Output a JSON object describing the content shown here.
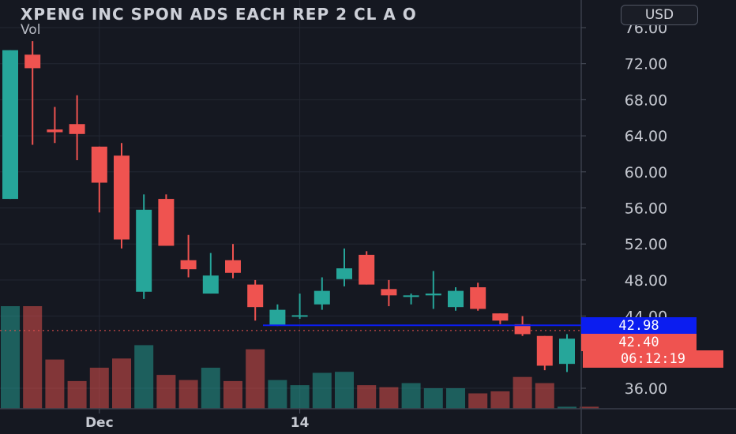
{
  "header": {
    "title": "XPENG INC SPON ADS EACH REP 2 CL A O",
    "indicator": "Vol",
    "currency_label": "USD"
  },
  "price_tags": {
    "blue_line": "42.98",
    "last_price": "42.40",
    "countdown": "06:12:19"
  },
  "colors": {
    "up": "#26a69a",
    "down": "#ef5350",
    "blue_line": "#0b1df0",
    "background": "#151821"
  },
  "chart_data": {
    "type": "candlestick",
    "y_axis": {
      "ticks": [
        "76.00",
        "72.00",
        "68.00",
        "64.00",
        "60.00",
        "56.00",
        "52.00",
        "48.00",
        "44.00",
        "36.00"
      ],
      "ylim": [
        32.5,
        77.5
      ]
    },
    "x_axis": {
      "tick_labels": [
        {
          "label": "Dec",
          "index": 4
        },
        {
          "label": "14",
          "index": 13
        }
      ]
    },
    "candles": [
      {
        "open": 57.0,
        "high": 73.5,
        "low": 57.0,
        "close": 73.5,
        "volume": 1.0
      },
      {
        "open": 73.0,
        "high": 74.5,
        "low": 63.0,
        "close": 71.5,
        "volume": 1.0
      },
      {
        "open": 64.7,
        "high": 67.2,
        "low": 63.2,
        "close": 64.4,
        "volume": 0.48
      },
      {
        "open": 65.3,
        "high": 68.5,
        "low": 61.3,
        "close": 64.2,
        "volume": 0.27
      },
      {
        "open": 62.8,
        "high": 62.8,
        "low": 55.5,
        "close": 58.8,
        "volume": 0.4
      },
      {
        "open": 61.8,
        "high": 63.2,
        "low": 51.5,
        "close": 52.5,
        "volume": 0.49
      },
      {
        "open": 46.7,
        "high": 57.5,
        "low": 45.9,
        "close": 55.8,
        "volume": 0.62
      },
      {
        "open": 57.0,
        "high": 57.5,
        "low": 51.8,
        "close": 51.8,
        "volume": 0.33
      },
      {
        "open": 50.2,
        "high": 53.0,
        "low": 48.3,
        "close": 49.2,
        "volume": 0.28
      },
      {
        "open": 46.5,
        "high": 51.0,
        "low": 46.5,
        "close": 48.5,
        "volume": 0.4
      },
      {
        "open": 50.2,
        "high": 52.0,
        "low": 48.2,
        "close": 48.8,
        "volume": 0.27
      },
      {
        "open": 47.5,
        "high": 48.0,
        "low": 43.5,
        "close": 45.0,
        "volume": 0.58
      },
      {
        "open": 43.0,
        "high": 45.3,
        "low": 42.9,
        "close": 44.7,
        "volume": 0.28
      },
      {
        "open": 44.0,
        "high": 46.5,
        "low": 43.7,
        "close": 44.1,
        "volume": 0.23
      },
      {
        "open": 45.3,
        "high": 48.3,
        "low": 44.7,
        "close": 46.8,
        "volume": 0.35
      },
      {
        "open": 48.1,
        "high": 51.5,
        "low": 47.3,
        "close": 49.3,
        "volume": 0.36
      },
      {
        "open": 50.8,
        "high": 51.2,
        "low": 47.5,
        "close": 47.5,
        "volume": 0.23
      },
      {
        "open": 47.0,
        "high": 48.0,
        "low": 45.1,
        "close": 46.3,
        "volume": 0.21
      },
      {
        "open": 46.3,
        "high": 46.5,
        "low": 45.3,
        "close": 46.3,
        "volume": 0.25
      },
      {
        "open": 46.3,
        "high": 49.0,
        "low": 44.8,
        "close": 46.5,
        "volume": 0.2
      },
      {
        "open": 45.0,
        "high": 47.2,
        "low": 44.6,
        "close": 46.8,
        "volume": 0.2
      },
      {
        "open": 47.2,
        "high": 47.7,
        "low": 44.6,
        "close": 44.8,
        "volume": 0.15
      },
      {
        "open": 44.3,
        "high": 44.3,
        "low": 43.1,
        "close": 43.5,
        "volume": 0.17
      },
      {
        "open": 43.1,
        "high": 44.0,
        "low": 41.8,
        "close": 42.0,
        "volume": 0.31
      },
      {
        "open": 41.8,
        "high": 41.8,
        "low": 38.0,
        "close": 38.5,
        "volume": 0.25
      },
      {
        "open": 38.7,
        "high": 42.0,
        "low": 37.8,
        "close": 41.5,
        "volume": 0.02
      },
      {
        "open": 42.9,
        "high": 43.5,
        "low": 41.8,
        "close": 42.4,
        "volume": 0.02
      }
    ]
  }
}
